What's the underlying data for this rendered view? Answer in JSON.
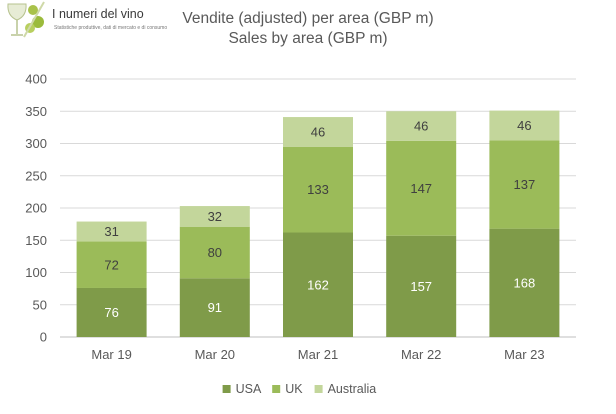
{
  "logo": {
    "name": "I numeri del vino",
    "tagline": "Statistiche produttive, dati di mercato e di consumo"
  },
  "chart_data": {
    "type": "bar",
    "stacked": true,
    "title": "Vendite (adjusted) per area (GBP m)",
    "subtitle": "Sales by area (GBP m)",
    "xlabel": "",
    "ylabel": "",
    "categories": [
      "Mar 19",
      "Mar 20",
      "Mar 21",
      "Mar 22",
      "Mar 23"
    ],
    "series": [
      {
        "name": "USA",
        "values": [
          76,
          91,
          162,
          157,
          168
        ],
        "color": "#7f9b49",
        "label_color": "#ffffff"
      },
      {
        "name": "UK",
        "values": [
          72,
          80,
          133,
          147,
          137
        ],
        "color": "#9bbb59",
        "label_color": "#404040"
      },
      {
        "name": "Australia",
        "values": [
          31,
          32,
          46,
          46,
          46
        ],
        "color": "#c3d69b",
        "label_color": "#404040"
      }
    ],
    "ylim": [
      0,
      400
    ],
    "yticks": [
      0,
      50,
      100,
      150,
      200,
      250,
      300,
      350,
      400
    ],
    "grid": true,
    "legend": "bottom-center"
  }
}
